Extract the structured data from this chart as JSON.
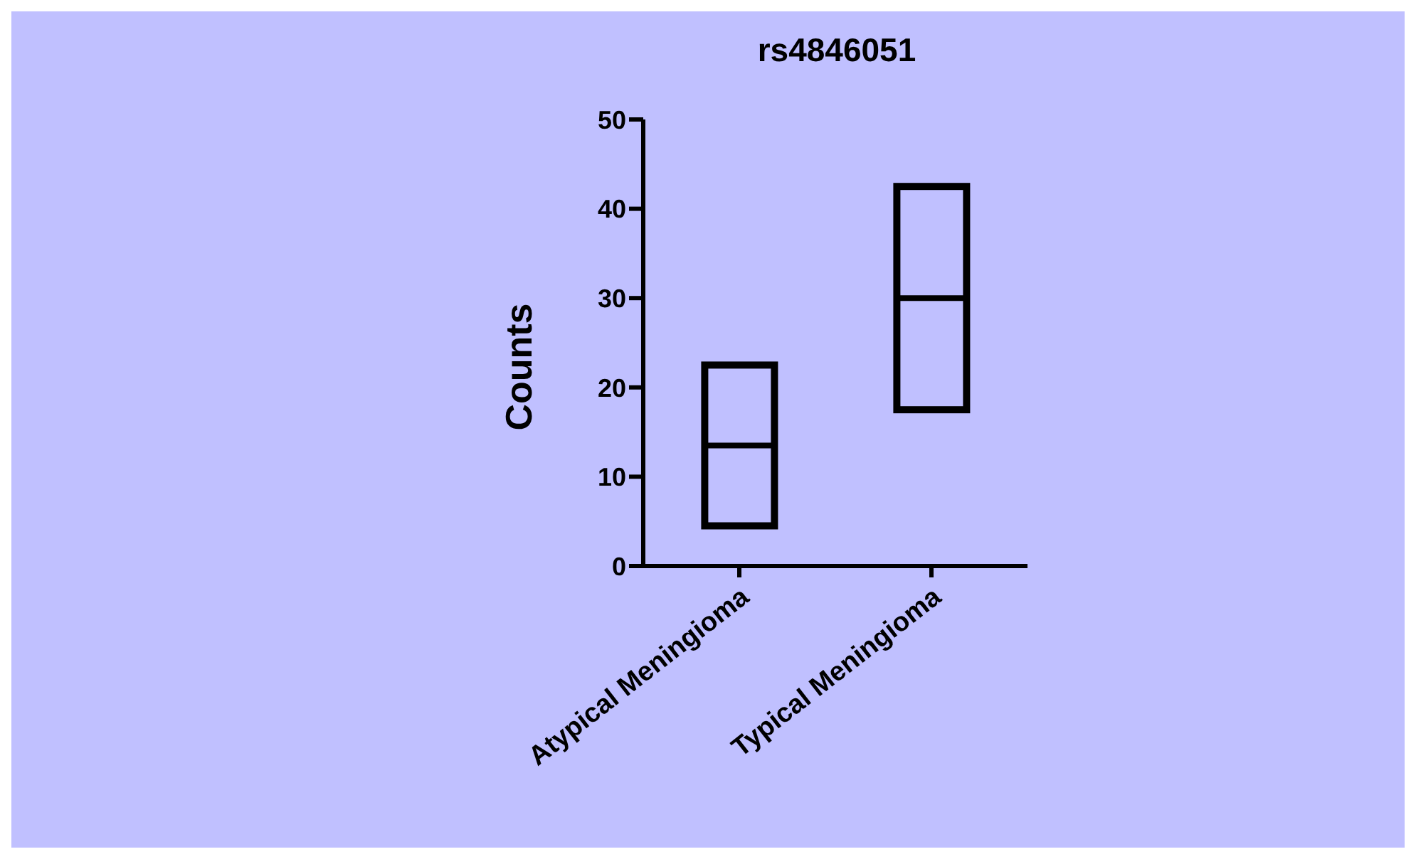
{
  "chart_data": {
    "type": "box",
    "title": "rs4846051",
    "ylabel": "Counts",
    "categories": [
      "Atypical Meningioma",
      "Typical Meningioma"
    ],
    "boxes": [
      {
        "low": 4.5,
        "q1": 4.5,
        "median": 13.5,
        "q3": 22.5,
        "high": 22.5
      },
      {
        "low": 17.5,
        "q1": 17.5,
        "median": 30,
        "q3": 42.5,
        "high": 42.5
      }
    ],
    "color": "#000000",
    "ylim": [
      0,
      50
    ],
    "yticks": [
      0,
      10,
      20,
      30,
      40,
      50
    ]
  }
}
